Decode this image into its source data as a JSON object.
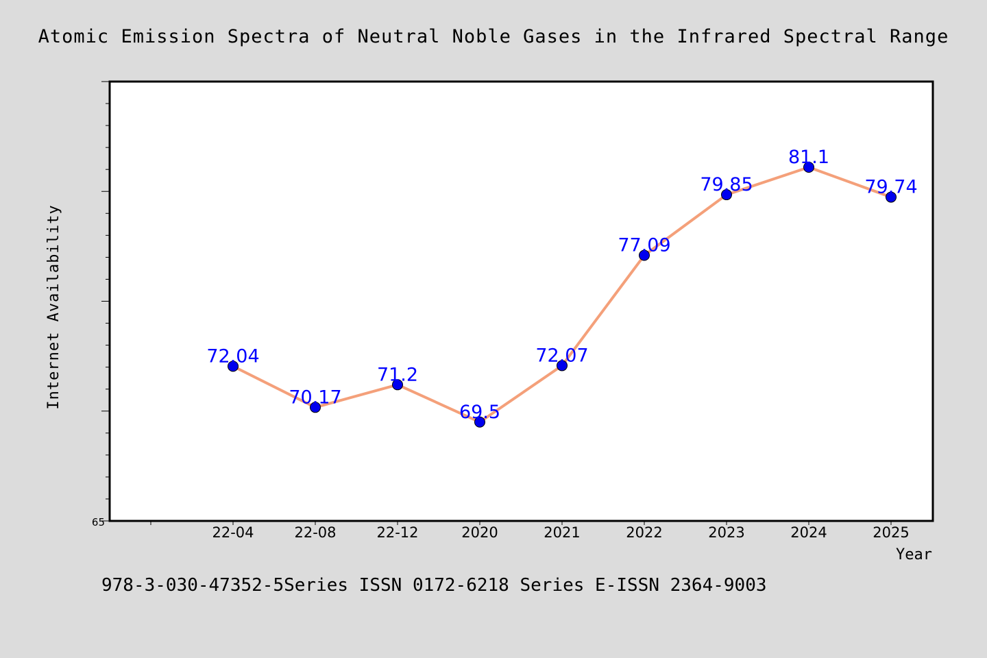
{
  "figure": {
    "title": "Atomic Emission Spectra of Neutral Noble Gases in the Infrared Spectral Range",
    "footer": "978-3-030-47352-5Series ISSN 0172-6218 Series E-ISSN 2364-9003",
    "background_color": "#dcdcdc",
    "plot_background_color": "#ffffff"
  },
  "chart_data": {
    "type": "line",
    "title": "Atomic Emission Spectra of Neutral Noble Gases in the Infrared Spectral Range",
    "xlabel": "Year",
    "ylabel": "Internet Availability",
    "categories": [
      "22-04",
      "22-08",
      "22-12",
      "2020",
      "2021",
      "2022",
      "2023",
      "2024",
      "2025"
    ],
    "series": [
      {
        "values": [
          72.04,
          70.17,
          71.2,
          69.5,
          72.07,
          77.09,
          79.85,
          81.1,
          79.74
        ],
        "line_color": "#f4a07a",
        "marker_color": "#0000ee",
        "label_color": "#0000ff"
      }
    ],
    "data_labels": [
      "72.04",
      "70.17",
      "71.2",
      "69.5",
      "72.07",
      "77.09",
      "79.85",
      "81.1",
      "79.74"
    ],
    "ylim": [
      65,
      85
    ],
    "y_tick_labels": [
      "65"
    ],
    "grid": false,
    "legend": "none"
  }
}
